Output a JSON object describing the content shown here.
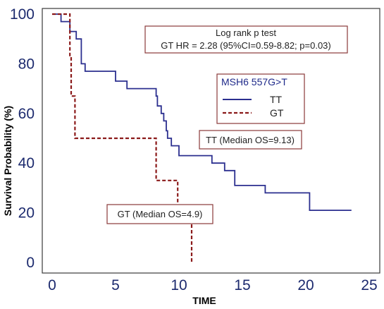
{
  "chart_data": {
    "type": "line",
    "title": "",
    "xlabel": "TIME",
    "ylabel": "Survival Probability (%)",
    "xlim": [
      0,
      25
    ],
    "ylim": [
      0,
      100
    ],
    "x_ticks": [
      "0",
      "5",
      "10",
      "15",
      "20",
      "25"
    ],
    "y_ticks": [
      "0",
      "20",
      "40",
      "60",
      "80",
      "100"
    ],
    "grid": false,
    "legend": {
      "title": "MSH6 557G>T",
      "placement": "right-middle",
      "entries": [
        "TT",
        "GT"
      ]
    },
    "series": [
      {
        "name": "TT",
        "color": "#2b2f8f",
        "style": "solid",
        "x": [
          0,
          0.7,
          1.4,
          1.9,
          2.3,
          2.6,
          5.0,
          5.9,
          8.2,
          8.3,
          8.6,
          8.8,
          9.0,
          9.1,
          9.4,
          10.0,
          12.6,
          13.6,
          14.4,
          16.8,
          20.3,
          23.6
        ],
        "y": [
          100,
          97,
          93,
          90,
          80,
          77,
          73,
          70,
          67,
          63,
          60,
          57,
          53,
          50,
          47,
          43,
          40,
          37,
          31,
          28,
          21,
          21
        ]
      },
      {
        "name": "GT",
        "color": "#8b1a1a",
        "style": "dashed",
        "x": [
          0,
          1.4,
          1.5,
          1.8,
          8.2,
          9.9,
          11.0
        ],
        "y": [
          100,
          83,
          67,
          50,
          33,
          17,
          0
        ]
      }
    ],
    "annotations": [
      "Log rank p test",
      "GT HR = 2.28 (95%CI=0.59-8.82; p=0.03)",
      "TT (Median OS=9.13)",
      "GT (Median OS=4.9)"
    ]
  }
}
